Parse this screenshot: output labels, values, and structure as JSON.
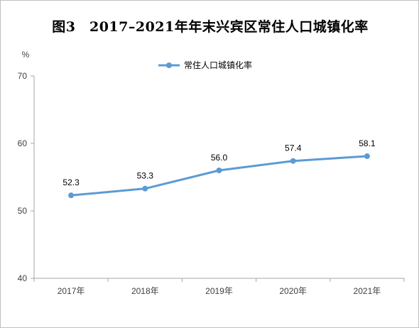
{
  "chart_data": {
    "type": "line",
    "title": "图3　2017–2021年年末兴宾区常住人口城镇化率",
    "ylabel": "%",
    "xlabel": "",
    "categories": [
      "2017年",
      "2018年",
      "2019年",
      "2020年",
      "2021年"
    ],
    "series": [
      {
        "name": "常住人口城镇化率",
        "values": [
          52.3,
          53.3,
          56.0,
          57.4,
          58.1
        ],
        "data_labels": [
          "52.3",
          "53.3",
          "56.0",
          "57.4",
          "58.1"
        ],
        "color": "#5b9bd5"
      }
    ],
    "ylim": [
      40,
      70
    ],
    "yticks": [
      40,
      50,
      60,
      70
    ],
    "grid": false,
    "legend": "top-center"
  }
}
